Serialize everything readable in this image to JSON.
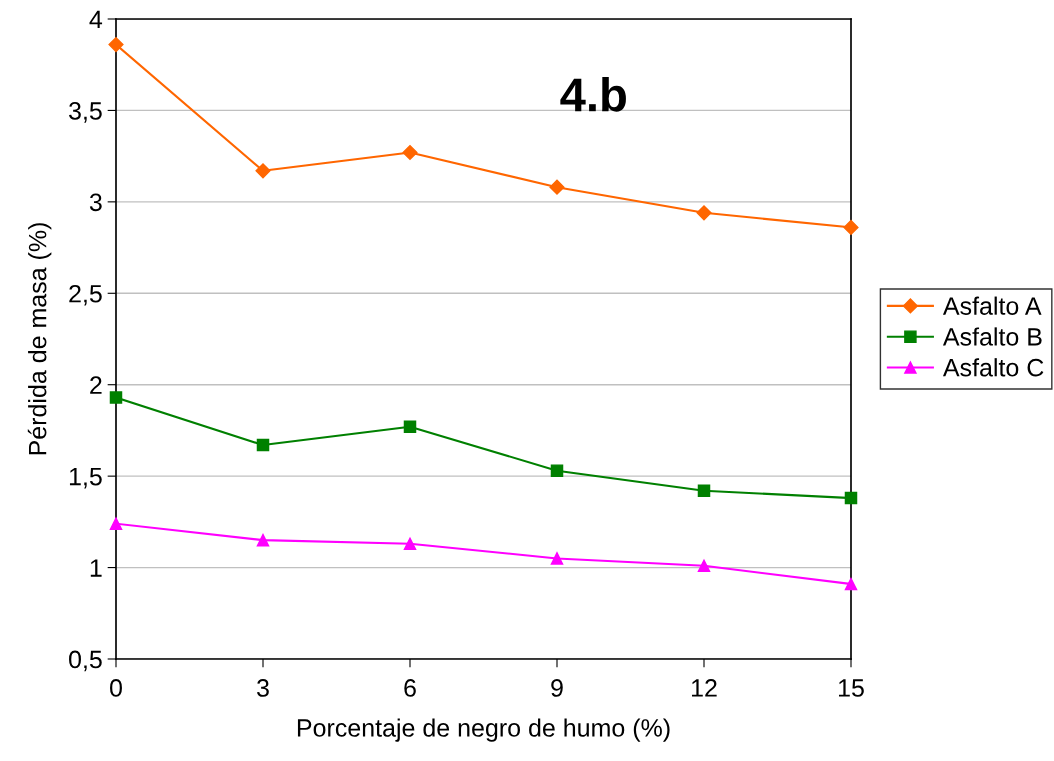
{
  "chart_data": {
    "type": "line",
    "title": "4.b",
    "xlabel": "Porcentaje de negro de humo (%)",
    "ylabel": "Pérdida de masa (%)",
    "x": [
      0,
      3,
      6,
      9,
      12,
      15
    ],
    "series": [
      {
        "name": "Asfalto A",
        "color": "#ff6600",
        "marker": "diamond",
        "values": [
          3.86,
          3.17,
          3.27,
          3.08,
          2.94,
          2.86
        ]
      },
      {
        "name": "Asfalto B",
        "color": "#008000",
        "marker": "square",
        "values": [
          1.93,
          1.67,
          1.77,
          1.53,
          1.42,
          1.38
        ]
      },
      {
        "name": "Asfalto C",
        "color": "#ff00ff",
        "marker": "triangle",
        "values": [
          1.24,
          1.15,
          1.13,
          1.05,
          1.01,
          0.91
        ]
      }
    ],
    "xlim": [
      0,
      15
    ],
    "xticks": [
      0,
      3,
      6,
      9,
      12,
      15
    ],
    "ylim": [
      0.5,
      4
    ],
    "yticks": [
      {
        "value": 0.5,
        "label": "0,5"
      },
      1,
      {
        "value": 1.5,
        "label": "1,5"
      },
      2,
      {
        "value": 2.5,
        "label": "2,5"
      },
      3,
      {
        "value": 3.5,
        "label": "3,5"
      },
      4
    ],
    "grid": "y",
    "legend": "right",
    "line_style": "solid"
  }
}
